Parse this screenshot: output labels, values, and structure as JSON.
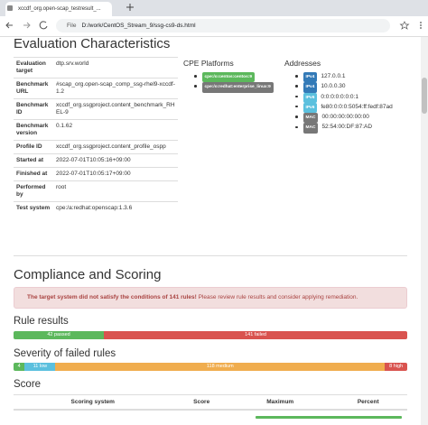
{
  "browser": {
    "tab_title": "xccdf_org.open-scap_testresult_...",
    "url_scheme": "File",
    "url": "D:/work/CentOS_Stream_9/ssg-cs9-ds.html"
  },
  "characteristics": {
    "title": "Evaluation Characteristics",
    "rows": [
      [
        "Evaluation target",
        "dtp.srv.world"
      ],
      [
        "Benchmark URL",
        "#scap_org.open-scap_comp_ssg-rhel9-xccdf-1.2"
      ],
      [
        "Benchmark ID",
        "xccdf_org.ssgproject.content_benchmark_RHEL-9"
      ],
      [
        "Benchmark version",
        "0.1.62"
      ],
      [
        "Profile ID",
        "xccdf_org.ssgproject.content_profile_ospp"
      ],
      [
        "Started at",
        "2022-07-01T10:05:16+09:00"
      ],
      [
        "Finished at",
        "2022-07-01T10:05:17+09:00"
      ],
      [
        "Performed by",
        "root"
      ],
      [
        "Test system",
        "cpe:/a:redhat:openscap:1.3.6"
      ]
    ]
  },
  "cpe": {
    "title": "CPE Platforms",
    "items": [
      {
        "label": "cpe:/o:centos:centos:9",
        "color": "#5cb85c"
      },
      {
        "label": "cpe:/o:redhat:enterprise_linux:9",
        "color": "#777777"
      }
    ]
  },
  "addresses": {
    "title": "Addresses",
    "items": [
      {
        "type": "IPv4",
        "value": "127.0.0.1",
        "color": "#337ab7"
      },
      {
        "type": "IPv4",
        "value": "10.0.0.30",
        "color": "#337ab7"
      },
      {
        "type": "IPv6",
        "value": "0:0:0:0:0:0:0:1",
        "color": "#5bc0de"
      },
      {
        "type": "IPv6",
        "value": "fe80:0:0:0:5054:ff:fedf:87ad",
        "color": "#5bc0de"
      },
      {
        "type": "MAC",
        "value": "00:00:00:00:00:00",
        "color": "#777777"
      },
      {
        "type": "MAC",
        "value": "52:54:00:DF:87:AD",
        "color": "#777777"
      }
    ]
  },
  "compliance": {
    "title": "Compliance and Scoring",
    "alert_strong": "The target system did not satisfy the conditions of 141 rules!",
    "alert_text": "Please review rule results and consider applying remediation."
  },
  "rule_results": {
    "title": "Rule results",
    "segments": [
      {
        "count": 42,
        "label": "42 passed",
        "color": "#5cb85c"
      },
      {
        "count": 141,
        "label": "141 failed",
        "color": "#d9534f"
      }
    ]
  },
  "severity": {
    "title": "Severity of failed rules",
    "segments": [
      {
        "count": 4,
        "label": "4",
        "color": "#5cb85c"
      },
      {
        "count": 11,
        "label": "11 low",
        "color": "#5bc0de"
      },
      {
        "count": 118,
        "label": "118 medium",
        "color": "#f0ad4e"
      },
      {
        "count": 8,
        "label": "8 high",
        "color": "#d9534f"
      }
    ]
  },
  "score": {
    "title": "Score",
    "headers": [
      "Scoring system",
      "Score",
      "Maximum",
      "Percent"
    ]
  }
}
